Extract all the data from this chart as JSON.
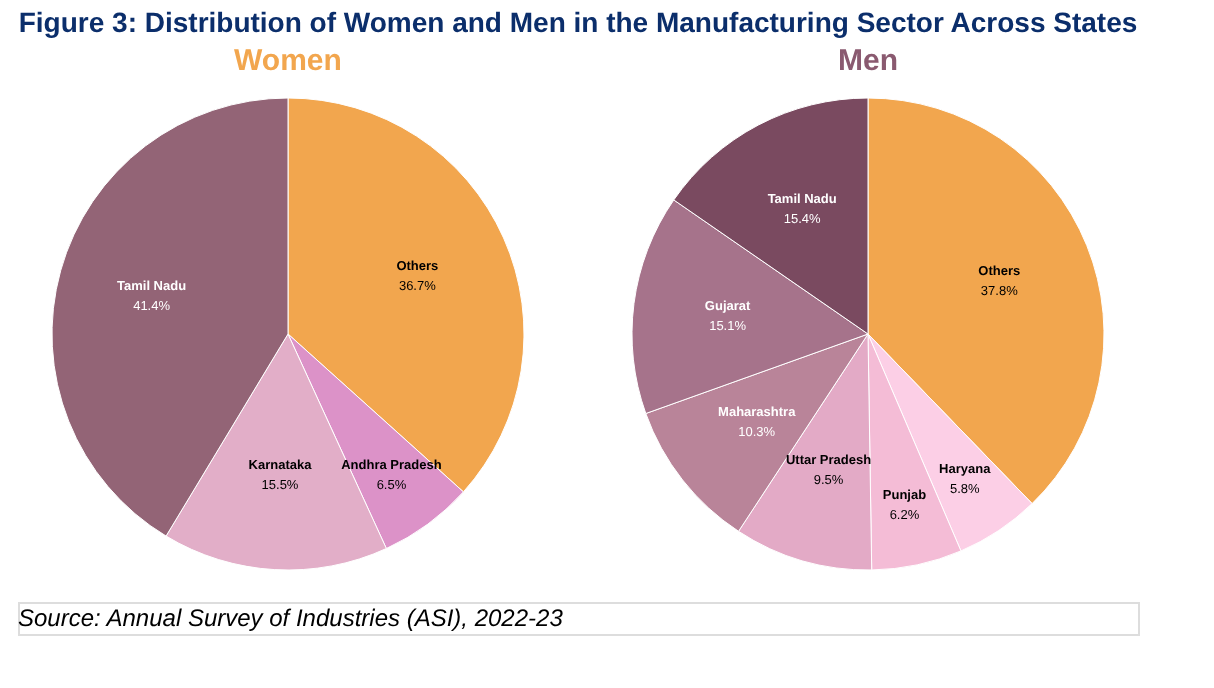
{
  "chart_data": [
    {
      "type": "other",
      "title": "Figure 3: Distribution of Women and Men in the Manufacturing Sector Across States",
      "annotations": [
        "Source: Annual Survey of Industries (ASI), 2022-23"
      ]
    },
    {
      "type": "pie",
      "title": "Women",
      "categories": [
        "Others",
        "Andhra Pradesh",
        "Karnataka",
        "Tamil Nadu"
      ],
      "values": [
        36.7,
        6.5,
        15.5,
        41.4
      ],
      "value_labels": [
        "36.7%",
        "6.5%",
        "15.5%",
        "41.4%"
      ],
      "colors": [
        "#f2a64e",
        "#dc92c8",
        "#e2aec8",
        "#936476"
      ]
    },
    {
      "type": "pie",
      "title": "Men",
      "categories": [
        "Others",
        "Haryana",
        "Punjab",
        "Uttar Pradesh",
        "Maharashtra",
        "Gujarat",
        "Tamil Nadu"
      ],
      "values": [
        37.8,
        5.8,
        6.2,
        9.5,
        10.3,
        15.1,
        15.4
      ],
      "value_labels": [
        "37.8%",
        "5.8%",
        "6.2%",
        "9.5%",
        "10.3%",
        "15.1%",
        "15.4%"
      ],
      "colors": [
        "#f2a64e",
        "#fccfe6",
        "#f4bcd6",
        "#e3aac6",
        "#b98499",
        "#a6738b",
        "#7a4a60"
      ]
    }
  ]
}
